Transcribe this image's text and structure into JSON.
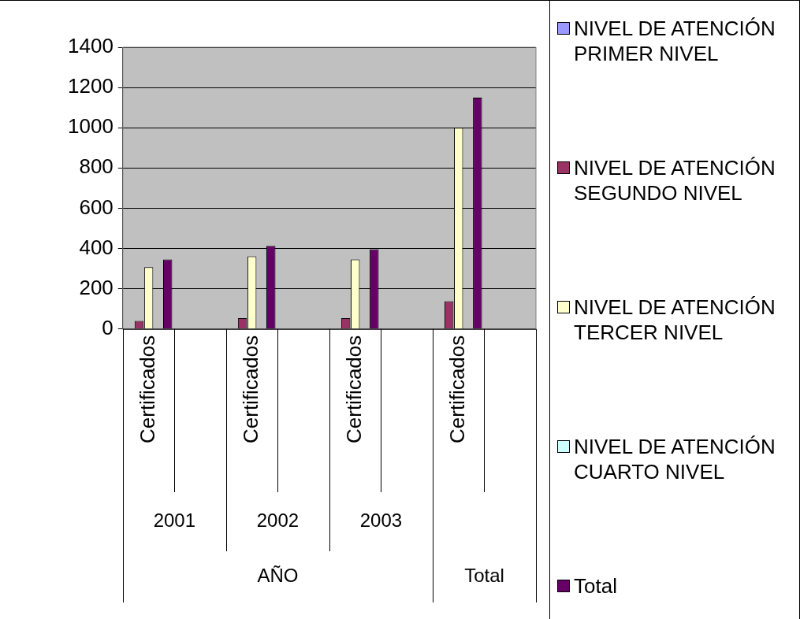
{
  "chart_data": {
    "type": "bar",
    "categories": [
      "Certificados",
      null,
      "Certificados",
      null,
      "Certificados",
      null,
      "Certificados",
      null
    ],
    "series": [
      {
        "name": "NIVEL DE ATENCIÓN PRIMER NIVEL",
        "color": "#9999ff",
        "values": [
          0,
          null,
          null,
          null,
          0,
          null,
          null,
          null
        ]
      },
      {
        "name": "NIVEL DE ATENCIÓN SEGUNDO NIVEL",
        "color": "#993366",
        "values": [
          40,
          null,
          54,
          null,
          54,
          null,
          138,
          null
        ]
      },
      {
        "name": "NIVEL DE ATENCIÓN TERCER NIVEL",
        "color": "#ffffcc",
        "values": [
          307,
          null,
          361,
          null,
          345,
          null,
          1000,
          null
        ]
      },
      {
        "name": "NIVEL DE ATENCIÓN CUARTO NIVEL",
        "color": "#ccffff",
        "values": [
          0,
          null,
          null,
          null,
          0,
          null,
          null,
          null
        ]
      },
      {
        "name": "Total",
        "color": "#660066",
        "values": [
          345,
          null,
          413,
          null,
          396,
          null,
          1150,
          null
        ]
      }
    ],
    "ylim": [
      0,
      1400
    ],
    "yticks": [
      0,
      200,
      400,
      600,
      800,
      1000,
      1200,
      1400
    ],
    "grid": "y",
    "legend": "right",
    "annotations": [
      "2001",
      "2002",
      "2003",
      "AÑO",
      "Total"
    ]
  }
}
